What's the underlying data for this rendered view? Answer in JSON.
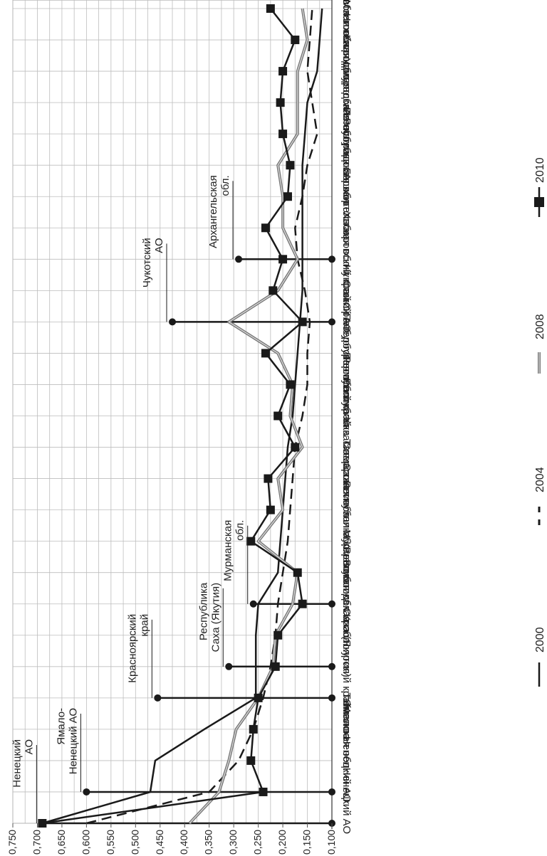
{
  "chart_data": {
    "type": "line",
    "orientation": "rotated-90",
    "y_axis_range": [
      0.1,
      0.75
    ],
    "y_ticks": [
      "0,750",
      "0,700",
      "0,650",
      "0,600",
      "0,550",
      "0,500",
      "0,450",
      "0,400",
      "0,350",
      "0,300",
      "0,250",
      "0,200",
      "0,150",
      "0,100"
    ],
    "grid": true,
    "legend_position": "right",
    "categories": [
      "Ненецкий АО",
      "Ямало-Ненецкий АО",
      "Тюменская обл.",
      "г. Москва",
      "Красноярский край",
      "Республика Саха (Якутия)",
      "Вологодская обл.",
      "Мурманская обл.",
      "Республика Карелия",
      "Сахалинская обл.",
      "Самарская обл.",
      "Республика Татарстан",
      "Республика Хакасия",
      "Пермский край",
      "Оренбургская обл.",
      "г. Санкт-Петербург",
      "Чукотский АО",
      "Хабаровский край",
      "Архангельская обл.",
      "Республика Башкортостан",
      "Ленинградская обл.",
      "Удмуртская Республика",
      "Калининградская обл.",
      "Нижегородская обл.",
      "Московская обл.",
      "Саратовская обл.",
      "Ульяновская обл."
    ],
    "series": [
      {
        "name": "2000",
        "color": "#1a1a1a",
        "dash": "solid",
        "width": 2.5,
        "values": [
          0.69,
          0.47,
          0.46,
          0.36,
          0.255,
          0.255,
          0.255,
          0.25,
          0.21,
          0.205,
          0.2,
          0.195,
          0.19,
          0.18,
          0.175,
          0.17,
          0.165,
          0.16,
          0.16,
          0.16,
          0.16,
          0.16,
          0.155,
          0.15,
          0.13,
          0.125,
          0.12
        ]
      },
      {
        "name": "2004",
        "color": "#1a1a1a",
        "dash": "dashed",
        "width": 2.5,
        "values": [
          0.6,
          0.35,
          0.29,
          0.26,
          0.24,
          0.225,
          0.215,
          0.21,
          0.2,
          0.19,
          0.185,
          0.18,
          0.175,
          0.16,
          0.15,
          0.15,
          0.145,
          0.155,
          0.17,
          0.175,
          0.16,
          0.15,
          0.13,
          0.14,
          0.15,
          0.145,
          0.14
        ]
      },
      {
        "name": "2008",
        "color": "#8a8a8a",
        "dash": "solid",
        "width": 3,
        "values": [
          0.39,
          0.33,
          0.31,
          0.295,
          0.25,
          0.22,
          0.215,
          0.18,
          0.17,
          0.25,
          0.2,
          0.21,
          0.16,
          0.185,
          0.18,
          0.21,
          0.31,
          0.21,
          0.17,
          0.2,
          0.2,
          0.21,
          0.17,
          0.17,
          0.17,
          0.15,
          0.16
        ]
      },
      {
        "name": "2010",
        "color": "#1a1a1a",
        "dash": "solid",
        "width": 2.5,
        "marker": "square",
        "values": [
          0.69,
          0.24,
          0.265,
          0.26,
          0.25,
          0.215,
          0.21,
          0.16,
          0.17,
          0.265,
          0.225,
          0.23,
          0.175,
          0.21,
          0.185,
          0.235,
          0.16,
          0.22,
          0.2,
          0.235,
          0.19,
          0.185,
          0.2,
          0.205,
          0.2,
          0.175,
          0.225
        ]
      }
    ],
    "annotations": [
      {
        "text": [
          "Ненецкий",
          "АО"
        ],
        "category": 0,
        "value": 0.69
      },
      {
        "text": [
          "Ямало-",
          "Ненецкий АО"
        ],
        "category": 1,
        "value": 0.6
      },
      {
        "text": [
          "Красноярский",
          "край"
        ],
        "category": 4,
        "value": 0.455
      },
      {
        "text": [
          "Республика",
          "Саха (Якутия)"
        ],
        "category": 5,
        "value": 0.31
      },
      {
        "text": [
          "Мурманская",
          "обл."
        ],
        "category": 7,
        "value": 0.26
      },
      {
        "text": [
          "Чукотский",
          "АО"
        ],
        "category": 16,
        "value": 0.425
      },
      {
        "text": [
          "Архангельская",
          "обл."
        ],
        "category": 18,
        "value": 0.29
      }
    ]
  }
}
